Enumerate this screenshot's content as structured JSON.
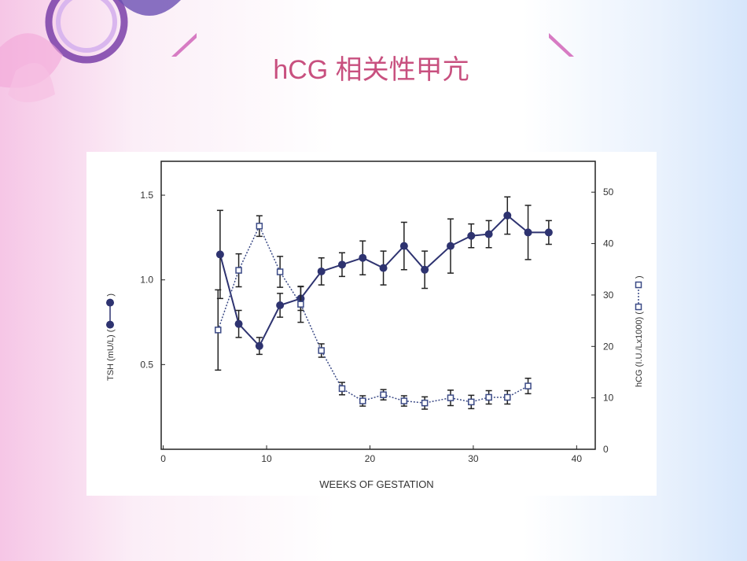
{
  "chart_data": {
    "type": "line",
    "title": "hCG 相关性甲亢",
    "xlabel": "WEEKS OF GESTATION",
    "ylabel": [
      "TSH (mU/L) (",
      ")"
    ],
    "y2label": [
      "hCG (I.U./Lx1000) (",
      ")"
    ],
    "xlim": [
      -0.2,
      41.8
    ],
    "xticks": [
      0,
      10,
      20,
      30,
      40
    ],
    "ylim": [
      0,
      1.7
    ],
    "yticks": [
      0.5,
      {
        "value": 1,
        "label": "1.0"
      },
      1.5
    ],
    "y2lim": [
      0,
      56
    ],
    "y2ticks": [
      0,
      10,
      20,
      30,
      40,
      50
    ],
    "series": [
      {
        "name": "TSH",
        "color": "#2e3370",
        "marker": "circle",
        "x": [
          5.5,
          7.3,
          9.3,
          11.3,
          13.3,
          15.3,
          17.3,
          19.3,
          21.3,
          23.3,
          25.3,
          27.8,
          29.8,
          31.5,
          33.3,
          35.3,
          37.3
        ],
        "values": [
          1.15,
          0.74,
          0.61,
          0.85,
          0.89,
          1.05,
          1.09,
          1.13,
          1.07,
          1.2,
          1.06,
          1.2,
          1.26,
          1.27,
          1.38,
          1.28,
          1.28
        ],
        "errors": [
          0.26,
          0.08,
          0.05,
          0.07,
          0.07,
          0.08,
          0.07,
          0.1,
          0.1,
          0.14,
          0.11,
          0.16,
          0.07,
          0.08,
          0.11,
          0.16,
          0.07
        ]
      },
      {
        "name": "hCG",
        "color": "#3b4a86",
        "marker": "square",
        "axis": "y2",
        "dashed": true,
        "x": [
          5.3,
          7.3,
          9.3,
          11.3,
          13.3,
          15.3,
          17.3,
          19.3,
          21.3,
          23.3,
          25.3,
          27.8,
          29.8,
          31.5,
          33.3,
          35.3
        ],
        "values": [
          23.2,
          34.8,
          43.4,
          34.5,
          28.2,
          19.2,
          11.8,
          9.4,
          10.6,
          9.4,
          9.0,
          10,
          9.2,
          10.1,
          10.1,
          12.3
        ],
        "errors": [
          7.8,
          3.2,
          2,
          3,
          3.5,
          1.3,
          1.2,
          1,
          1,
          1,
          1.2,
          1.5,
          1.3,
          1.3,
          1.3,
          1.5
        ]
      }
    ]
  }
}
